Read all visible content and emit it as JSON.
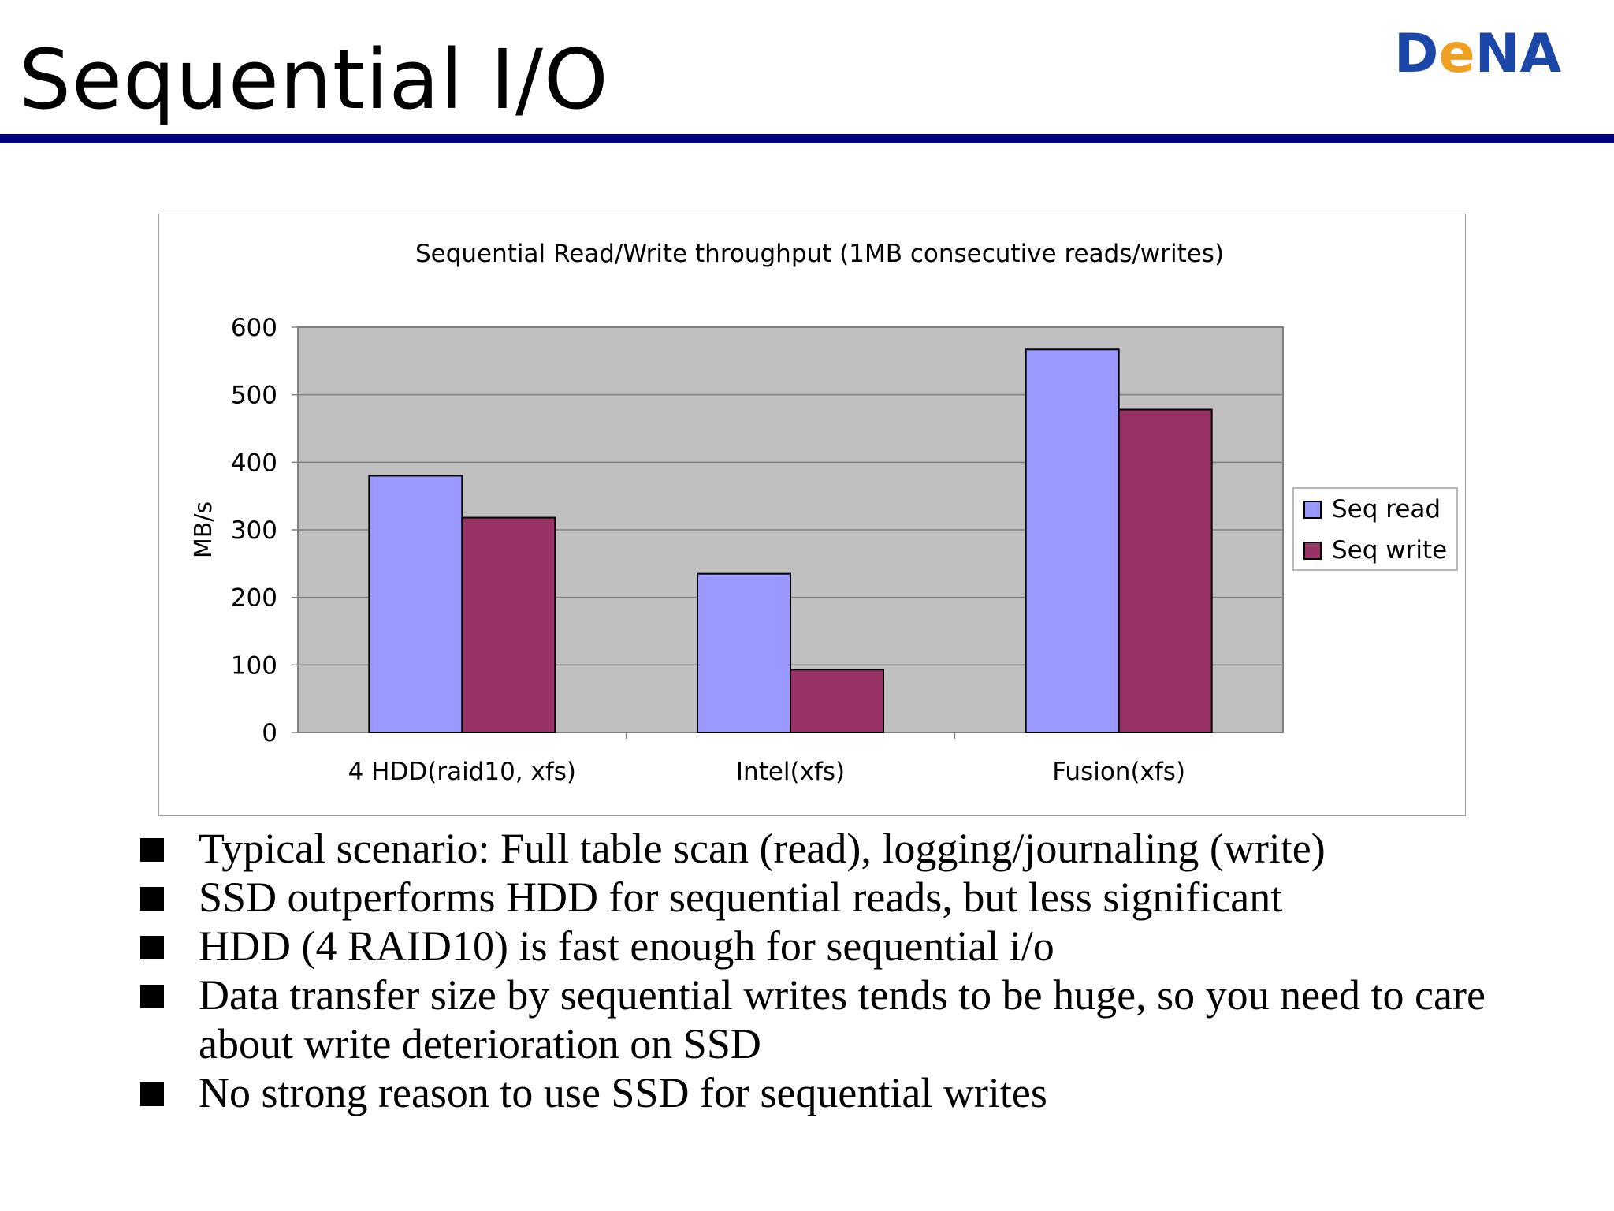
{
  "slide": {
    "title": "Sequential I/O",
    "logo_text": "DeNA"
  },
  "colors": {
    "title_rule": "#00007a",
    "plot_bg": "#c0c0c0",
    "seq_read": "#9999ff",
    "seq_write": "#993366",
    "logo_blue": "#1b48a8",
    "logo_orange": "#f0a020"
  },
  "chart_data": {
    "type": "bar",
    "title": "Sequential Read/Write throughput (1MB consecutive reads/writes)",
    "xlabel": "",
    "ylabel": "MB/s",
    "categories": [
      "4 HDD(raid10, xfs)",
      "Intel(xfs)",
      "Fusion(xfs)"
    ],
    "series": [
      {
        "name": "Seq read",
        "values": [
          380,
          235,
          567
        ]
      },
      {
        "name": "Seq write",
        "values": [
          318,
          93,
          478
        ]
      }
    ],
    "ylim": [
      0,
      600
    ],
    "yticks": [
      0,
      100,
      200,
      300,
      400,
      500,
      600
    ],
    "grid": true,
    "legend": "right"
  },
  "bullets": [
    "Typical scenario: Full table scan (read), logging/journaling (write)",
    "SSD outperforms HDD for sequential reads, but less significant",
    "HDD (4 RAID10) is fast enough for sequential i/o",
    "Data transfer size by sequential writes tends to be huge, so you need to care about write deterioration on SSD",
    "No strong reason to use SSD for sequential writes"
  ]
}
